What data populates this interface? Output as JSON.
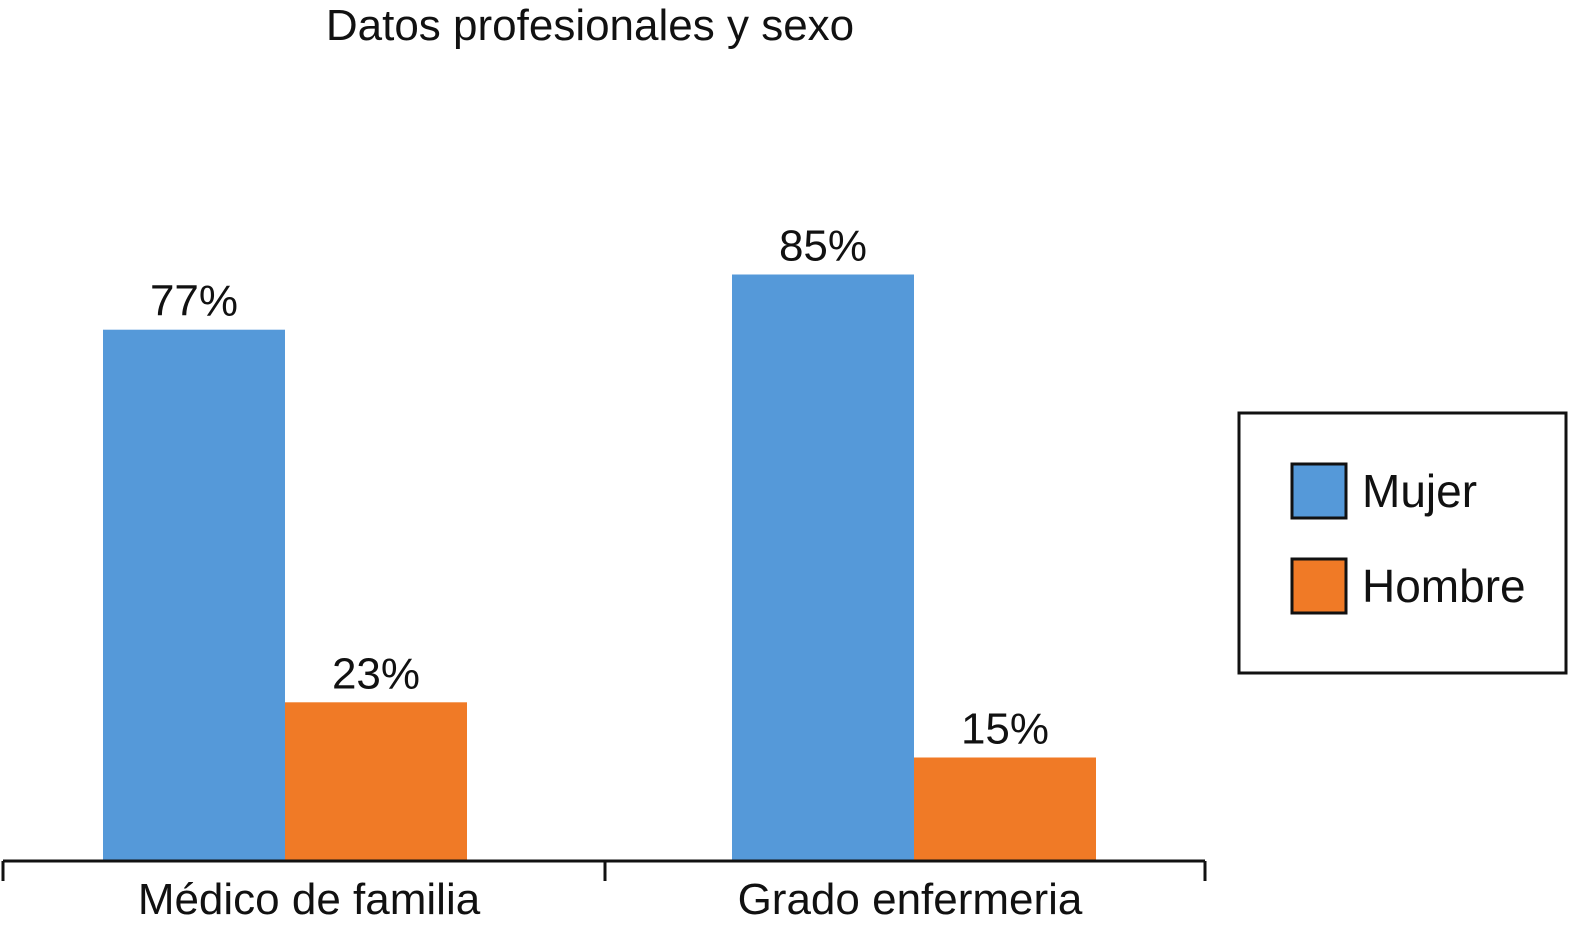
{
  "chart_data": {
    "type": "bar",
    "title": "Datos profesionales y sexo",
    "categories": [
      "Médico de familia",
      "Grado enfermeria"
    ],
    "series": [
      {
        "name": "Mujer",
        "values": [
          77,
          85
        ],
        "color": "#5599d9"
      },
      {
        "name": "Hombre",
        "values": [
          23,
          15
        ],
        "color": "#f07a26"
      }
    ],
    "value_labels": [
      [
        "77%",
        "85%"
      ],
      [
        "23%",
        "15%"
      ]
    ],
    "ylim": [
      0,
      100
    ],
    "grid": false,
    "legend_position": "right"
  }
}
